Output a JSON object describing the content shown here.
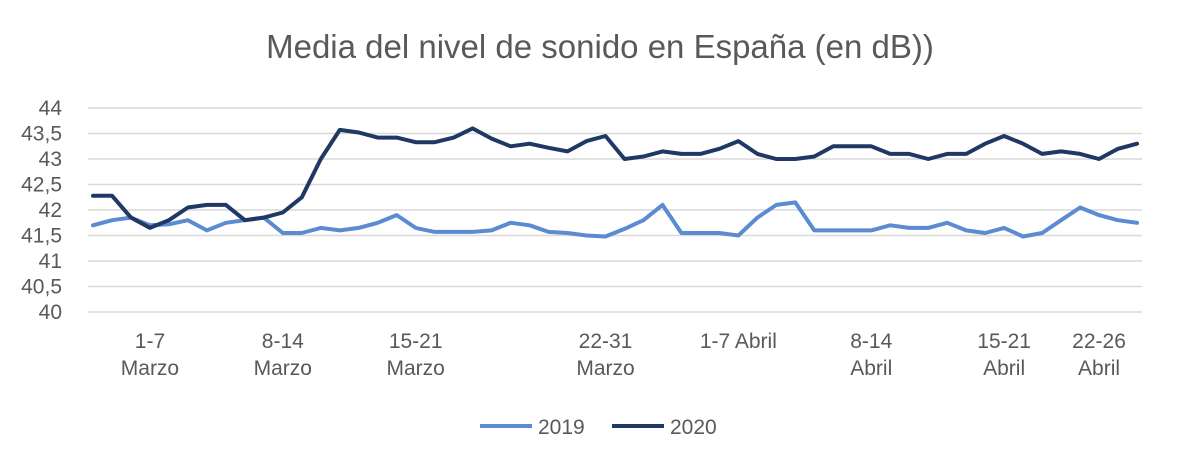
{
  "chart_data": {
    "type": "line",
    "title": "Media del nivel de sonido en España (en dB))",
    "xlabel": "",
    "ylabel": "",
    "ylim": [
      40,
      44
    ],
    "yticks": [
      "40",
      "40,5",
      "41",
      "41,5",
      "42",
      "42,5",
      "43",
      "43,5",
      "44"
    ],
    "yvalues": [
      40,
      40.5,
      41,
      41.5,
      42,
      42.5,
      43,
      43.5,
      44
    ],
    "grid": true,
    "legend_position": "bottom",
    "x_index_range": [
      1,
      53
    ],
    "x_tick_labels": [
      {
        "lines": [
          "1-7",
          "Marzo"
        ],
        "index": 4
      },
      {
        "lines": [
          "8-14",
          "Marzo"
        ],
        "index": 11
      },
      {
        "lines": [
          "15-21",
          "Marzo"
        ],
        "index": 18
      },
      {
        "lines": [
          "22-31",
          "Marzo"
        ],
        "index": 28
      },
      {
        "lines": [
          "1-7 Abril"
        ],
        "index": 35
      },
      {
        "lines": [
          "8-14",
          "Abril"
        ],
        "index": 42
      },
      {
        "lines": [
          "15-21",
          "Abril"
        ],
        "index": 49
      },
      {
        "lines": [
          "22-26",
          "Abril"
        ],
        "index": 54
      }
    ],
    "series": [
      {
        "name": "2019",
        "color": "#5b8bd0",
        "values": [
          41.7,
          41.8,
          41.85,
          41.7,
          41.72,
          41.8,
          41.6,
          41.75,
          41.8,
          41.85,
          41.55,
          41.55,
          41.65,
          41.6,
          41.65,
          41.75,
          41.9,
          41.65,
          41.57,
          41.57,
          41.57,
          41.6,
          41.75,
          41.7,
          41.57,
          41.55,
          41.5,
          41.48,
          41.63,
          41.8,
          42.1,
          41.55,
          41.55,
          41.55,
          41.5,
          41.85,
          42.1,
          42.15,
          41.6,
          41.6,
          41.6,
          41.6,
          41.7,
          41.65,
          41.65,
          41.75,
          41.6,
          41.55,
          41.65,
          41.48,
          41.55,
          41.8,
          42.05,
          41.9,
          41.8,
          41.75
        ]
      },
      {
        "name": "2020",
        "color": "#1f3864",
        "values": [
          42.28,
          42.28,
          41.85,
          41.65,
          41.8,
          42.05,
          42.1,
          42.1,
          41.8,
          41.85,
          41.95,
          42.25,
          43.0,
          43.57,
          43.52,
          43.42,
          43.42,
          43.33,
          43.33,
          43.42,
          43.6,
          43.4,
          43.25,
          43.3,
          43.22,
          43.15,
          43.35,
          43.45,
          43.0,
          43.05,
          43.15,
          43.1,
          43.1,
          43.2,
          43.35,
          43.1,
          43.0,
          43.0,
          43.05,
          43.25,
          43.25,
          43.25,
          43.1,
          43.1,
          43.0,
          43.1,
          43.1,
          43.3,
          43.45,
          43.3,
          43.1,
          43.15,
          43.1,
          43.0,
          43.2,
          43.3
        ]
      }
    ]
  }
}
